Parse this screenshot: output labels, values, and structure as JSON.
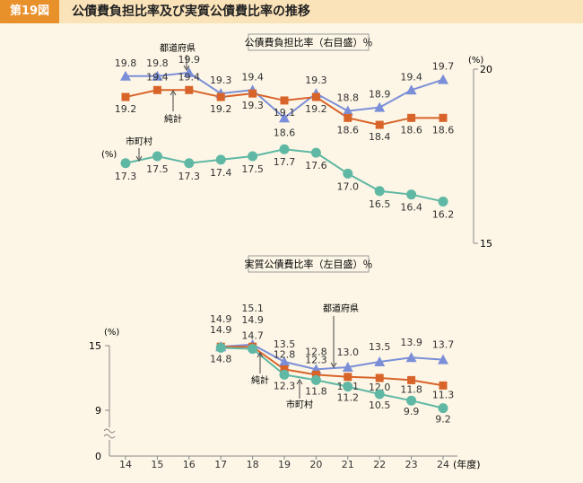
{
  "header": {
    "figure_label": "第19図",
    "title": "公債費負担比率及び実質公債費比率の推移"
  },
  "colors": {
    "prefecture": "#7b8fd8",
    "total": "#d8642a",
    "municipality": "#5fb8a4",
    "grid": "#888888",
    "text": "#333333",
    "label_box_border": "#999999"
  },
  "chart_data": [
    {
      "type": "line",
      "title": "公債費負担比率（右目盛）％",
      "unit_label": "(%)",
      "side_unit_label": "(%)",
      "x": [
        14,
        15,
        16,
        17,
        18,
        19,
        20,
        21,
        22,
        23,
        24
      ],
      "ylim": [
        15,
        20
      ],
      "axis_ticks": [
        {
          "value": 20,
          "label": "20"
        },
        {
          "value": 15,
          "label": "15"
        }
      ],
      "series": [
        {
          "key": "prefecture",
          "name": "都道府県",
          "marker": "triangle",
          "values": [
            19.8,
            19.8,
            19.9,
            19.3,
            19.4,
            18.6,
            19.3,
            18.8,
            18.9,
            19.4,
            19.7
          ],
          "labels": [
            "19.8",
            "19.8",
            "19.9",
            "19.3",
            "19.4",
            "18.6",
            "19.3",
            "18.8",
            "18.9",
            "19.4",
            "19.7"
          ]
        },
        {
          "key": "total",
          "name": "純計",
          "marker": "square",
          "values": [
            19.2,
            19.4,
            19.4,
            19.2,
            19.3,
            19.1,
            19.2,
            18.6,
            18.4,
            18.6,
            18.6
          ],
          "labels": [
            "19.2",
            "19.4",
            "19.4",
            "19.2",
            "19.3",
            "19.1",
            "19.2",
            "18.6",
            "18.4",
            "18.6",
            "18.6"
          ]
        },
        {
          "key": "municipality",
          "name": "市町村",
          "marker": "circle",
          "values": [
            17.3,
            17.5,
            17.3,
            17.4,
            17.5,
            17.7,
            17.6,
            17.0,
            16.5,
            16.4,
            16.2
          ],
          "labels": [
            "17.3",
            "17.5",
            "17.3",
            "17.4",
            "17.5",
            "17.7",
            "17.6",
            "17.0",
            "16.5",
            "16.4",
            "16.2"
          ]
        }
      ]
    },
    {
      "type": "line",
      "title": "実質公債費比率（左目盛）％",
      "unit_label": "(%)",
      "xlabel": "(年度)",
      "x": [
        14,
        15,
        16,
        17,
        18,
        19,
        20,
        21,
        22,
        23,
        24
      ],
      "x_tick_labels": [
        "14",
        "15",
        "16",
        "17",
        "18",
        "19",
        "20",
        "21",
        "22",
        "23",
        "24"
      ],
      "ylim": [
        0,
        15
      ],
      "axis_ticks": [
        {
          "value": 15,
          "label": "15"
        },
        {
          "value": 9,
          "label": "9"
        },
        {
          "value": 0,
          "label": "0"
        }
      ],
      "series": [
        {
          "key": "prefecture",
          "name": "都道府県",
          "marker": "triangle",
          "x": [
            17,
            18,
            19,
            20,
            21,
            22,
            23,
            24
          ],
          "values": [
            14.9,
            15.1,
            13.5,
            12.8,
            13.0,
            13.5,
            13.9,
            13.7
          ],
          "labels": [
            "14.9",
            "15.1",
            "13.5",
            "12.8",
            "13.0",
            "13.5",
            "13.9",
            "13.7"
          ]
        },
        {
          "key": "total",
          "name": "純計",
          "marker": "square",
          "x": [
            17,
            18,
            19,
            20,
            21,
            22,
            23,
            24
          ],
          "values": [
            14.9,
            14.9,
            12.8,
            12.3,
            12.1,
            12.0,
            11.8,
            11.3
          ],
          "labels": [
            "14.9",
            "14.9",
            "12.8",
            "12.3",
            "12.1",
            "12.0",
            "11.8",
            "11.3"
          ]
        },
        {
          "key": "municipality",
          "name": "市町村",
          "marker": "circle",
          "x": [
            17,
            18,
            19,
            20,
            21,
            22,
            23,
            24
          ],
          "values": [
            14.8,
            14.7,
            12.3,
            11.8,
            11.2,
            10.5,
            9.9,
            9.2
          ],
          "labels": [
            "14.8",
            "14.7",
            "12.3",
            "11.8",
            "11.2",
            "10.5",
            "9.9",
            "9.2"
          ]
        }
      ]
    }
  ]
}
